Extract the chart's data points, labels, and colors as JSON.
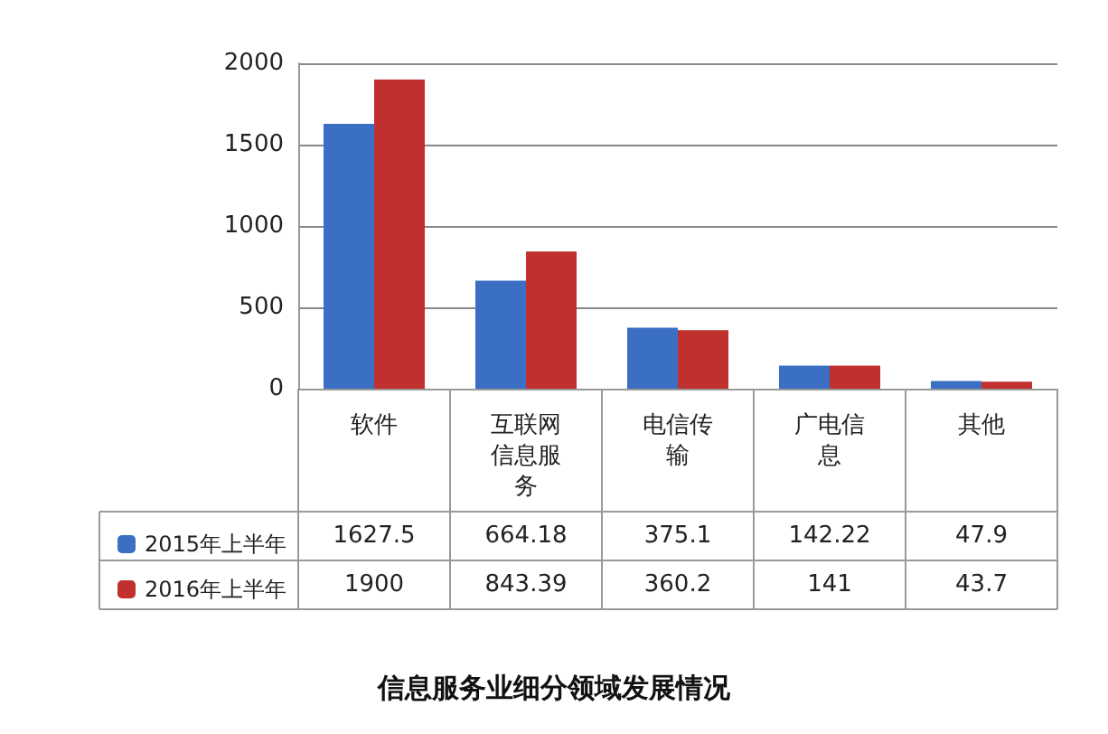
{
  "chart_data": {
    "type": "bar",
    "title": "信息服务业细分领域发展情况",
    "categories": [
      "软件",
      "互联网信息服务",
      "电信传输",
      "广电信息",
      "其他"
    ],
    "series": [
      {
        "name": "2015年上半年",
        "color": "#3a6fc4",
        "values": [
          1627.5,
          664.18,
          375.1,
          142.22,
          47.9
        ]
      },
      {
        "name": "2016年上半年",
        "color": "#c0302e",
        "values": [
          1900,
          843.39,
          360.2,
          141,
          43.7
        ]
      }
    ],
    "ylim": [
      0,
      2000
    ],
    "yticks": [
      0,
      500,
      1000,
      1500,
      2000
    ],
    "grid": "y",
    "legend": "bottom left",
    "data_labels": true
  }
}
